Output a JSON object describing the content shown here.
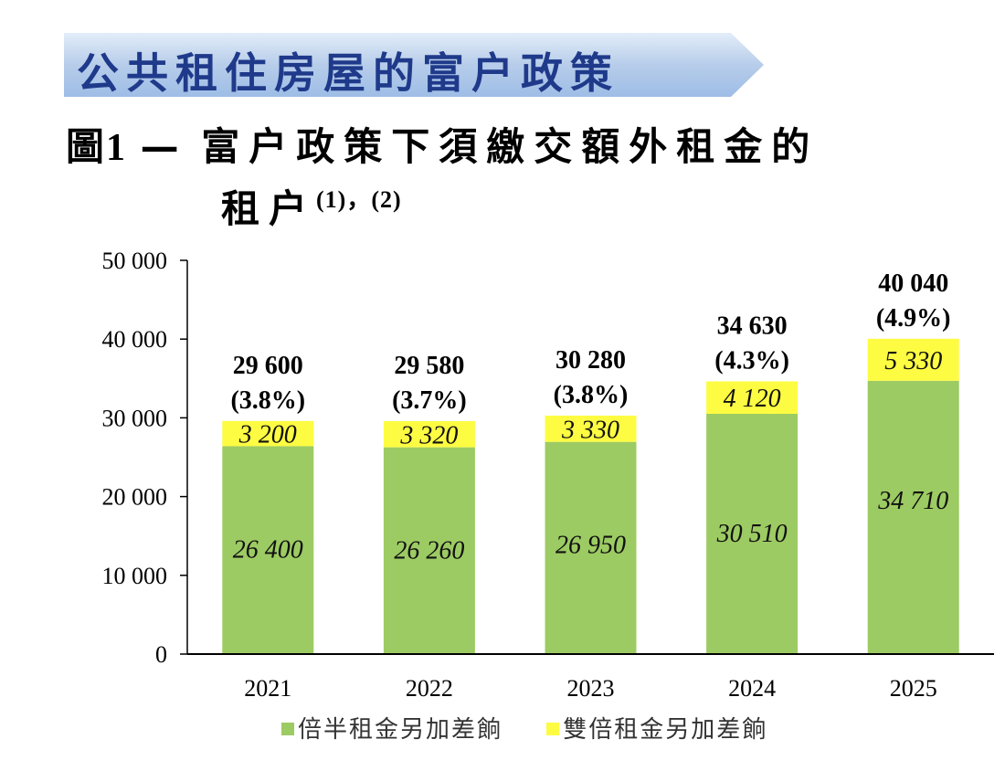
{
  "banner": {
    "title": "公共租住房屋的富户政策"
  },
  "figure": {
    "label": "圖1",
    "dash": "—",
    "title_line1": "富户政策下須繳交額外租金的",
    "title_line2": "租户",
    "notes": "(1)，(2)"
  },
  "colors": {
    "green": "#9dcb63",
    "yellow": "#fdfc42",
    "banner": "#b7cdea",
    "title": "#1f3a8a"
  },
  "chart_data": {
    "type": "bar",
    "stacked": true,
    "categories": [
      "2021",
      "2022",
      "2023",
      "2024",
      "2025"
    ],
    "series": [
      {
        "name": "倍半租金另加差餉",
        "values": [
          26400,
          26260,
          26950,
          30510,
          34710
        ],
        "label_text": [
          "26 400",
          "26 260",
          "26 950",
          "30 510",
          "34 710"
        ]
      },
      {
        "name": "雙倍租金另加差餉",
        "values": [
          3200,
          3320,
          3330,
          4120,
          5330
        ],
        "label_text": [
          "3 200",
          "3 320",
          "3 330",
          "4 120",
          "5 330"
        ]
      }
    ],
    "totals": [
      29600,
      29580,
      30280,
      34630,
      40040
    ],
    "total_labels": [
      "29 600",
      "29 580",
      "30 280",
      "34 630",
      "40 040"
    ],
    "percent_labels": [
      "(3.8%)",
      "(3.7%)",
      "(3.8%)",
      "(4.3%)",
      "(4.9%)"
    ],
    "ylim": [
      0,
      50000
    ],
    "yticks": [
      0,
      10000,
      20000,
      30000,
      40000,
      50000
    ],
    "ytick_labels": [
      "0",
      "10 000",
      "20 000",
      "30 000",
      "40 000",
      "50 000"
    ],
    "legend_position": "bottom"
  }
}
